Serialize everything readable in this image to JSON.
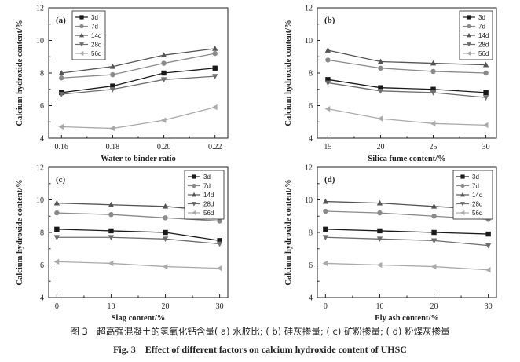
{
  "caption_cn": "图 3　超高强混凝土的氢氧化钙含量( a) 水胶比; ( b) 硅灰掺量; ( c) 矿粉掺量; ( d) 粉煤灰掺量",
  "caption_en": "Fig. 3　Effect of different factors on calcium hydroxide content of UHSC",
  "series_colors": {
    "3d": "#1a1a1a",
    "7d": "#8a8a8a",
    "14d": "#555555",
    "28d": "#6e6e6e",
    "56d": "#aaaaaa"
  },
  "chart_data": [
    {
      "panel": "(a)",
      "type": "line",
      "xlabel": "Water to binder ratio",
      "ylabel": "Calcium hydroxide content/%",
      "x": [
        0.16,
        0.18,
        0.2,
        0.22
      ],
      "x_ticks": [
        "0.16",
        "0.18",
        "0.20",
        "0.22"
      ],
      "xlim": [
        0.155,
        0.225
      ],
      "ylim": [
        4,
        12
      ],
      "y_ticks": [
        4,
        6,
        8,
        10,
        12
      ],
      "legend": "top-left",
      "series": [
        {
          "name": "3d",
          "marker": "square",
          "values": [
            6.8,
            7.2,
            8.0,
            8.3
          ]
        },
        {
          "name": "7d",
          "marker": "circle",
          "values": [
            7.7,
            7.9,
            8.6,
            9.2
          ]
        },
        {
          "name": "14d",
          "marker": "triangle-up",
          "values": [
            8.0,
            8.4,
            9.1,
            9.5
          ]
        },
        {
          "name": "28d",
          "marker": "triangle-down",
          "values": [
            6.7,
            7.0,
            7.6,
            7.8
          ]
        },
        {
          "name": "56d",
          "marker": "triangle-left",
          "values": [
            4.7,
            4.6,
            5.1,
            5.9
          ]
        }
      ]
    },
    {
      "panel": "(b)",
      "type": "line",
      "xlabel": "Silica fume content/%",
      "ylabel": "Calcium hydroxide content/%",
      "x": [
        15,
        20,
        25,
        30
      ],
      "x_ticks": [
        "15",
        "20",
        "25",
        "30"
      ],
      "xlim": [
        14,
        31
      ],
      "ylim": [
        4,
        12
      ],
      "y_ticks": [
        4,
        6,
        8,
        10,
        12
      ],
      "legend": "top-right",
      "series": [
        {
          "name": "3d",
          "marker": "square",
          "values": [
            7.6,
            7.1,
            7.0,
            6.8
          ]
        },
        {
          "name": "7d",
          "marker": "circle",
          "values": [
            8.8,
            8.3,
            8.1,
            8.0
          ]
        },
        {
          "name": "14d",
          "marker": "triangle-up",
          "values": [
            9.4,
            8.7,
            8.6,
            8.5
          ]
        },
        {
          "name": "28d",
          "marker": "triangle-down",
          "values": [
            7.4,
            6.9,
            6.8,
            6.5
          ]
        },
        {
          "name": "56d",
          "marker": "triangle-left",
          "values": [
            5.8,
            5.2,
            4.9,
            4.8
          ]
        }
      ]
    },
    {
      "panel": "(c)",
      "type": "line",
      "xlabel": "Slag content/%",
      "ylabel": "Calcium hydroxide content/%",
      "x": [
        0,
        10,
        20,
        30
      ],
      "x_ticks": [
        "0",
        "10",
        "20",
        "30"
      ],
      "xlim": [
        -1.5,
        31.5
      ],
      "ylim": [
        4,
        12
      ],
      "y_ticks": [
        4,
        6,
        8,
        10,
        12
      ],
      "legend": "top-right",
      "series": [
        {
          "name": "3d",
          "marker": "square",
          "values": [
            8.2,
            8.1,
            8.0,
            7.5
          ]
        },
        {
          "name": "7d",
          "marker": "circle",
          "values": [
            9.2,
            9.1,
            8.9,
            8.7
          ]
        },
        {
          "name": "14d",
          "marker": "triangle-up",
          "values": [
            9.8,
            9.7,
            9.6,
            9.3
          ]
        },
        {
          "name": "28d",
          "marker": "triangle-down",
          "values": [
            7.7,
            7.7,
            7.6,
            7.3
          ]
        },
        {
          "name": "56d",
          "marker": "triangle-left",
          "values": [
            6.2,
            6.1,
            5.9,
            5.8
          ]
        }
      ]
    },
    {
      "panel": "(d)",
      "type": "line",
      "xlabel": "Fly ash content/%",
      "ylabel": "Calcium hydroxide content/%",
      "x": [
        0,
        10,
        20,
        30
      ],
      "x_ticks": [
        "0",
        "10",
        "20",
        "30"
      ],
      "xlim": [
        -1.5,
        31.5
      ],
      "ylim": [
        4,
        12
      ],
      "y_ticks": [
        4,
        6,
        8,
        10,
        12
      ],
      "legend": "top-right",
      "series": [
        {
          "name": "3d",
          "marker": "square",
          "values": [
            8.2,
            8.1,
            8.0,
            7.9
          ]
        },
        {
          "name": "7d",
          "marker": "circle",
          "values": [
            9.3,
            9.2,
            9.0,
            8.8
          ]
        },
        {
          "name": "14d",
          "marker": "triangle-up",
          "values": [
            9.9,
            9.8,
            9.6,
            9.4
          ]
        },
        {
          "name": "28d",
          "marker": "triangle-down",
          "values": [
            7.7,
            7.6,
            7.5,
            7.2
          ]
        },
        {
          "name": "56d",
          "marker": "triangle-left",
          "values": [
            6.1,
            6.0,
            5.9,
            5.7
          ]
        }
      ]
    }
  ]
}
